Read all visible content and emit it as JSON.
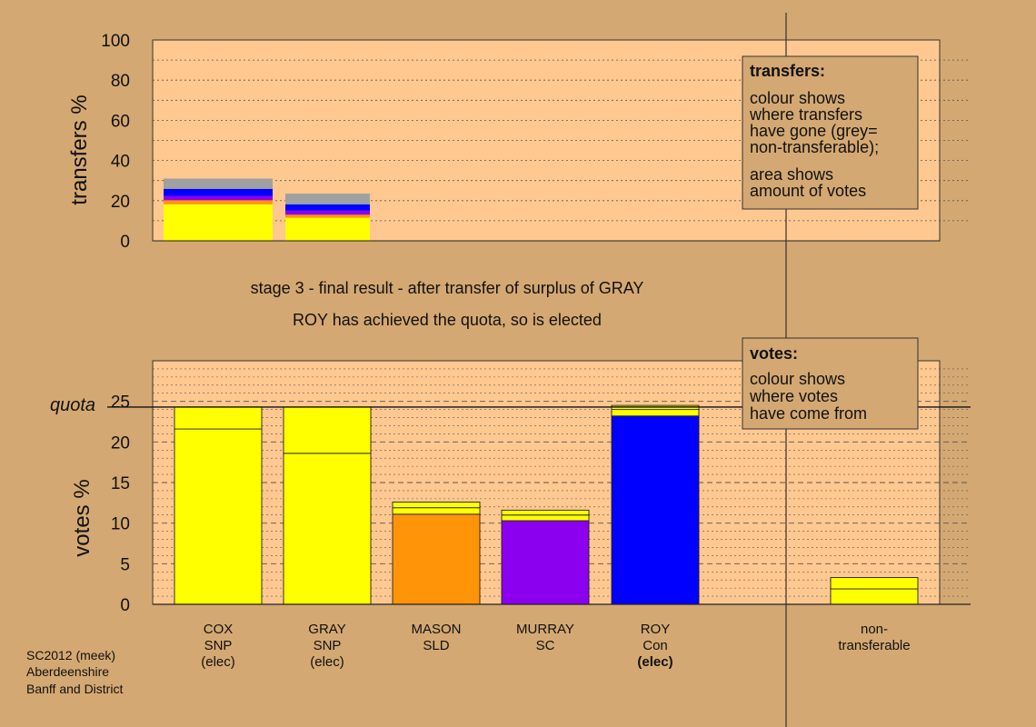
{
  "colors": {
    "background": "#d4a872",
    "plot_background": "#ffc890",
    "SNP": "#ffff00",
    "SLD": "#ff9408",
    "SC": "#8c00f0",
    "Con": "#0000ff",
    "non_transferable": "#a0a0a0"
  },
  "captions": {
    "stage": "stage 3 - final result - after transfer of surplus of GRAY",
    "result": "ROY has achieved the quota, so is elected"
  },
  "footer": [
    "SC2012 (meek)",
    "Aberdeenshire",
    "Banff and District"
  ],
  "legend_transfers": {
    "title": "transfers:",
    "lines": [
      "colour shows",
      "where transfers",
      "have gone (grey=",
      "non-transferable);"
    ],
    "lines2": [
      "area shows",
      "amount of votes"
    ]
  },
  "legend_votes": {
    "title": "votes:",
    "lines": [
      "colour shows",
      "where votes",
      "have come from"
    ]
  },
  "chart_data": [
    {
      "type": "bar",
      "ylabel": "transfers %",
      "ylim": [
        0,
        100
      ],
      "yticks": [
        0,
        20,
        40,
        60,
        80,
        100
      ],
      "grid": true,
      "stacked": true,
      "bars": [
        {
          "segments": [
            {
              "color": "SNP",
              "value": 18.2
            },
            {
              "color": "SLD",
              "value": 2.0
            },
            {
              "color": "SC",
              "value": 2.2
            },
            {
              "color": "Con",
              "value": 3.5
            },
            {
              "color": "non_transferable",
              "value": 5.1
            }
          ]
        },
        {
          "segments": [
            {
              "color": "SNP",
              "value": 11.5
            },
            {
              "color": "SLD",
              "value": 1.5
            },
            {
              "color": "SC",
              "value": 2.0
            },
            {
              "color": "Con",
              "value": 3.2
            },
            {
              "color": "non_transferable",
              "value": 5.3
            }
          ]
        }
      ]
    },
    {
      "type": "bar",
      "ylabel": "votes %",
      "ylim": [
        0,
        30
      ],
      "yticks": [
        0,
        5,
        10,
        15,
        20,
        25
      ],
      "grid": true,
      "stacked": true,
      "quota": 24.3,
      "quota_label": "quota",
      "candidates": [
        {
          "lines": [
            "COX",
            "SNP",
            "(elec)"
          ],
          "bold_last": false,
          "segments": [
            {
              "color": "SNP",
              "value": 21.6
            },
            {
              "color": "SNP",
              "value": 2.7
            }
          ]
        },
        {
          "lines": [
            "GRAY",
            "SNP",
            "(elec)"
          ],
          "bold_last": false,
          "segments": [
            {
              "color": "SNP",
              "value": 18.6
            },
            {
              "color": "SNP",
              "value": 5.7
            }
          ]
        },
        {
          "lines": [
            "MASON",
            "SLD"
          ],
          "bold_last": false,
          "segments": [
            {
              "color": "SLD",
              "value": 11.1
            },
            {
              "color": "SNP",
              "value": 0.8
            },
            {
              "color": "SNP",
              "value": 0.7
            }
          ]
        },
        {
          "lines": [
            "MURRAY",
            "SC"
          ],
          "bold_last": false,
          "segments": [
            {
              "color": "SC",
              "value": 10.3
            },
            {
              "color": "SNP",
              "value": 0.7
            },
            {
              "color": "SNP",
              "value": 0.6
            }
          ]
        },
        {
          "lines": [
            "ROY",
            "Con",
            "(elec)"
          ],
          "bold_last": true,
          "segments": [
            {
              "color": "Con",
              "value": 23.2
            },
            {
              "color": "SNP",
              "value": 0.8
            },
            {
              "color": "SNP",
              "value": 0.5
            }
          ]
        },
        {
          "lines": [
            "non-",
            "transferable"
          ],
          "bold_last": false,
          "segments": [
            {
              "color": "SNP",
              "value": 1.9
            },
            {
              "color": "SNP",
              "value": 1.4
            }
          ]
        }
      ]
    }
  ]
}
